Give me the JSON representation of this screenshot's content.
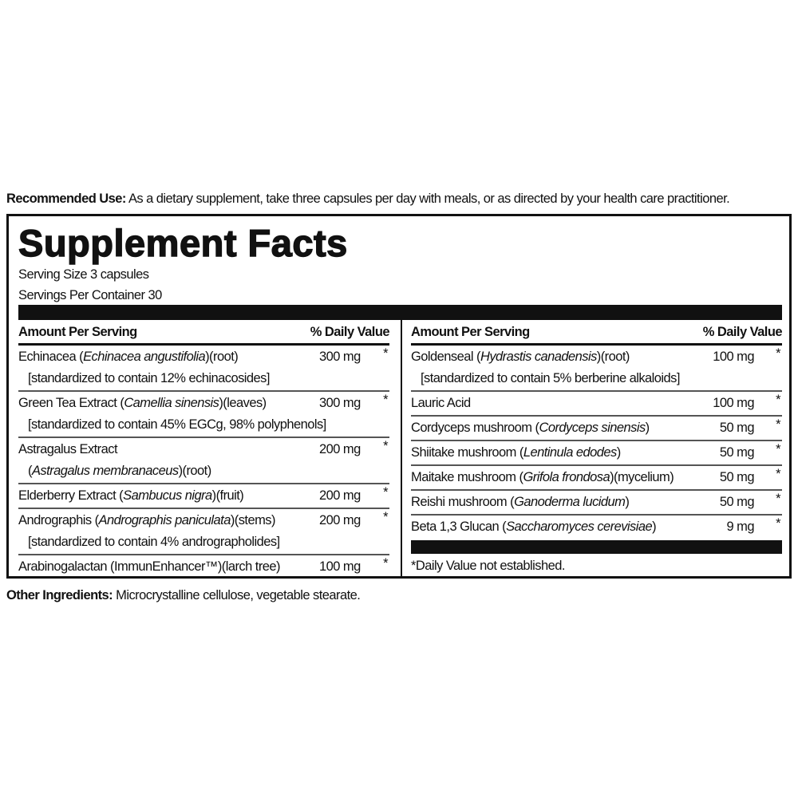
{
  "recommended_use": {
    "label": "Recommended Use:",
    "text": " As a dietary supplement, take three capsules per day with meals, or as directed by your health care practitioner."
  },
  "facts": {
    "title": "Supplement Facts",
    "serving_size": "Serving Size 3 capsules",
    "servings_per_container": "Servings Per Container 30",
    "header_amount": "Amount Per Serving",
    "header_dv": "% Daily Value",
    "left_rows": [
      {
        "parts": [
          {
            "t": "Echinacea ("
          },
          {
            "t": "Echinacea angustifolia",
            "i": true
          },
          {
            "t": ")(root)"
          }
        ],
        "amount": "300 mg",
        "dv": "*",
        "sub": [
          {
            "t": "[standardized to contain 12% echinacosides]"
          }
        ]
      },
      {
        "parts": [
          {
            "t": "Green Tea Extract ("
          },
          {
            "t": "Camellia sinensis",
            "i": true
          },
          {
            "t": ")(leaves)"
          }
        ],
        "amount": "300 mg",
        "dv": "*",
        "sub": [
          {
            "t": "[standardized to contain 45% EGCg, 98% polyphenols]"
          }
        ]
      },
      {
        "parts": [
          {
            "t": "Astragalus Extract"
          }
        ],
        "amount": "200 mg",
        "dv": "*",
        "sub": [
          {
            "t": "("
          },
          {
            "t": "Astragalus membranaceus",
            "i": true
          },
          {
            "t": ")(root)"
          }
        ]
      },
      {
        "parts": [
          {
            "t": "Elderberry Extract ("
          },
          {
            "t": "Sambucus nigra",
            "i": true
          },
          {
            "t": ")(fruit)"
          }
        ],
        "amount": "200 mg",
        "dv": "*"
      },
      {
        "parts": [
          {
            "t": "Andrographis ("
          },
          {
            "t": "Andrographis paniculata",
            "i": true
          },
          {
            "t": ")(stems)"
          }
        ],
        "amount": "200 mg",
        "dv": "*",
        "sub": [
          {
            "t": "[standardized to contain 4% andrographolides]"
          }
        ]
      },
      {
        "parts": [
          {
            "t": "Arabinogalactan (ImmunEnhancer™)(larch tree)"
          }
        ],
        "amount": "100 mg",
        "dv": "*"
      }
    ],
    "right_rows": [
      {
        "parts": [
          {
            "t": "Goldenseal ("
          },
          {
            "t": "Hydrastis canadensis",
            "i": true
          },
          {
            "t": ")(root)"
          }
        ],
        "amount": "100 mg",
        "dv": "*",
        "sub": [
          {
            "t": "[standardized to contain 5% berberine alkaloids]"
          }
        ]
      },
      {
        "parts": [
          {
            "t": "Lauric Acid"
          }
        ],
        "amount": "100 mg",
        "dv": "*"
      },
      {
        "parts": [
          {
            "t": "Cordyceps mushroom ("
          },
          {
            "t": "Cordyceps sinensis",
            "i": true
          },
          {
            "t": ")"
          }
        ],
        "amount": "50 mg",
        "dv": "*"
      },
      {
        "parts": [
          {
            "t": "Shiitake mushroom ("
          },
          {
            "t": "Lentinula edodes",
            "i": true
          },
          {
            "t": ")"
          }
        ],
        "amount": "50 mg",
        "dv": "*"
      },
      {
        "parts": [
          {
            "t": "Maitake mushroom ("
          },
          {
            "t": "Grifola frondosa",
            "i": true
          },
          {
            "t": ")(mycelium)"
          }
        ],
        "amount": "50 mg",
        "dv": "*"
      },
      {
        "parts": [
          {
            "t": "Reishi mushroom ("
          },
          {
            "t": "Ganoderma lucidum",
            "i": true
          },
          {
            "t": ")"
          }
        ],
        "amount": "50 mg",
        "dv": "*"
      },
      {
        "parts": [
          {
            "t": "Beta 1,3 Glucan ("
          },
          {
            "t": "Saccharomyces cerevisiae",
            "i": true
          },
          {
            "t": ")"
          }
        ],
        "amount": "9 mg",
        "dv": "*"
      }
    ],
    "footnote": "*Daily Value not established."
  },
  "other_ingredients": {
    "label": "Other Ingredients:",
    "text": " Microcrystalline cellulose, vegetable  stearate."
  }
}
